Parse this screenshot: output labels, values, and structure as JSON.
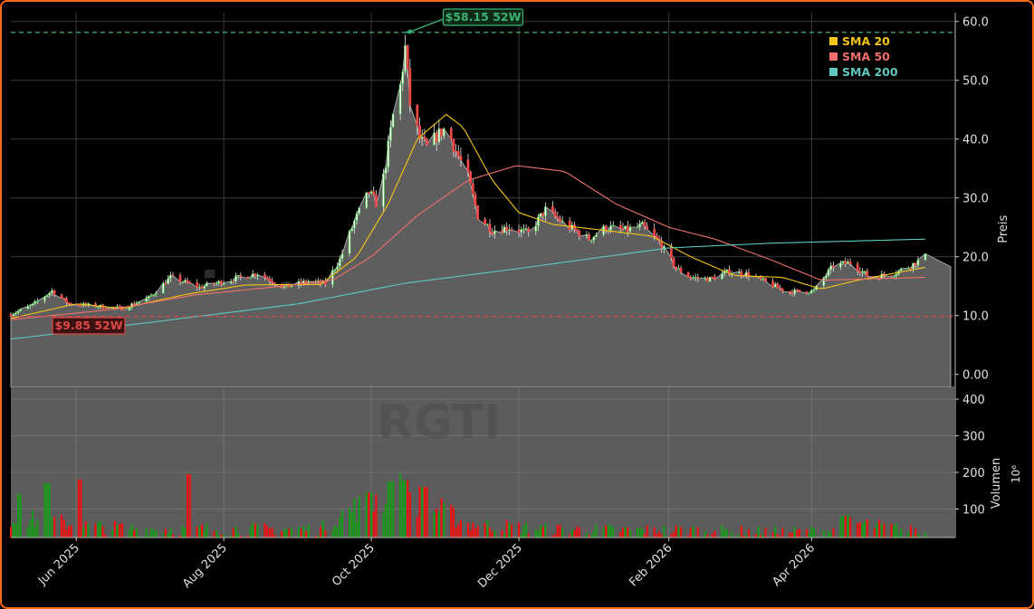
{
  "chart_data": [
    {
      "type": "candlestick",
      "ticker": "RGTI",
      "watermark": "RGTI",
      "watermark_url": "signale.trade",
      "ylabel": "Preis",
      "ylim": [
        -2.2,
        61.5
      ],
      "yticks": [
        0,
        10,
        20,
        30,
        40,
        50,
        60
      ],
      "ytick_labels": [
        "0.00",
        "10.0",
        "20.0",
        "30.0",
        "40.0",
        "50.0",
        "60.0"
      ],
      "xlim": [
        "2025-05-05",
        "2026-05-30"
      ],
      "xticks": [
        "2025-06-01",
        "2025-08-01",
        "2025-10-01",
        "2025-12-01",
        "2026-02-01",
        "2026-04-01"
      ],
      "xtick_labels": [
        "Jun 2025",
        "Aug 2025",
        "Oct 2025",
        "Dec 2025",
        "Feb 2026",
        "Apr 2026"
      ],
      "grid": true,
      "high_52w": {
        "value": 58.15,
        "label": "$58.15 52W",
        "date": "2025-10-15",
        "color": "#3cb371"
      },
      "low_52w": {
        "value": 9.85,
        "label": "$9.85 52W",
        "date": "2025-05-07",
        "color": "#e04848"
      },
      "price_anchors": [
        [
          "2025-05-05",
          10.2
        ],
        [
          "2025-05-14",
          11.8
        ],
        [
          "2025-05-22",
          14.2
        ],
        [
          "2025-05-29",
          12.0
        ],
        [
          "2025-06-10",
          11.6
        ],
        [
          "2025-06-20",
          11.2
        ],
        [
          "2025-07-01",
          13.0
        ],
        [
          "2025-07-10",
          16.5
        ],
        [
          "2025-07-22",
          14.8
        ],
        [
          "2025-08-05",
          16.2
        ],
        [
          "2025-08-15",
          17.2
        ],
        [
          "2025-08-26",
          14.8
        ],
        [
          "2025-09-05",
          15.8
        ],
        [
          "2025-09-12",
          15.4
        ],
        [
          "2025-09-18",
          19.5
        ],
        [
          "2025-09-24",
          26.0
        ],
        [
          "2025-09-30",
          31.0
        ],
        [
          "2025-10-04",
          28.5
        ],
        [
          "2025-10-07",
          36.0
        ],
        [
          "2025-10-10",
          44.0
        ],
        [
          "2025-10-13",
          49.0
        ],
        [
          "2025-10-15",
          55.5
        ],
        [
          "2025-10-17",
          46.0
        ],
        [
          "2025-10-21",
          40.0
        ],
        [
          "2025-10-24",
          38.5
        ],
        [
          "2025-10-28",
          40.5
        ],
        [
          "2025-11-01",
          42.0
        ],
        [
          "2025-11-05",
          38.0
        ],
        [
          "2025-11-10",
          33.5
        ],
        [
          "2025-11-14",
          27.0
        ],
        [
          "2025-11-20",
          24.5
        ],
        [
          "2025-11-27",
          25.0
        ],
        [
          "2025-12-05",
          24.0
        ],
        [
          "2025-12-12",
          28.0
        ],
        [
          "2025-12-20",
          25.5
        ],
        [
          "2025-12-30",
          23.0
        ],
        [
          "2026-01-06",
          25.0
        ],
        [
          "2026-01-14",
          24.5
        ],
        [
          "2026-01-21",
          25.2
        ],
        [
          "2026-01-28",
          22.5
        ],
        [
          "2026-02-04",
          18.0
        ],
        [
          "2026-02-10",
          16.5
        ],
        [
          "2026-02-18",
          16.2
        ],
        [
          "2026-02-26",
          17.5
        ],
        [
          "2026-03-06",
          17.0
        ],
        [
          "2026-03-14",
          15.5
        ],
        [
          "2026-03-22",
          14.0
        ],
        [
          "2026-04-02",
          14.2
        ],
        [
          "2026-04-10",
          18.5
        ],
        [
          "2026-04-17",
          19.0
        ],
        [
          "2026-04-25",
          16.5
        ],
        [
          "2026-05-04",
          17.0
        ],
        [
          "2026-05-12",
          18.5
        ],
        [
          "2026-05-18",
          20.0
        ]
      ],
      "area_end_value": 18.3,
      "sma": [
        {
          "name": "SMA 20",
          "color": "#f5c518",
          "points": [
            [
              "2025-05-05",
              9.5
            ],
            [
              "2025-06-01",
              12.0
            ],
            [
              "2025-06-20",
              11.2
            ],
            [
              "2025-07-15",
              13.5
            ],
            [
              "2025-08-10",
              15.2
            ],
            [
              "2025-09-10",
              15.3
            ],
            [
              "2025-09-25",
              20.0
            ],
            [
              "2025-10-08",
              29.0
            ],
            [
              "2025-10-20",
              40.0
            ],
            [
              "2025-11-01",
              44.2
            ],
            [
              "2025-11-08",
              42.0
            ],
            [
              "2025-11-20",
              33.0
            ],
            [
              "2025-12-01",
              27.5
            ],
            [
              "2025-12-15",
              25.5
            ],
            [
              "2026-01-05",
              24.5
            ],
            [
              "2026-01-25",
              23.5
            ],
            [
              "2026-02-10",
              20.0
            ],
            [
              "2026-02-28",
              16.8
            ],
            [
              "2026-03-20",
              16.5
            ],
            [
              "2026-04-05",
              14.5
            ],
            [
              "2026-04-20",
              16.0
            ],
            [
              "2026-05-18",
              18.2
            ]
          ]
        },
        {
          "name": "SMA 50",
          "color": "#ef6f6c",
          "points": [
            [
              "2025-05-05",
              9.3
            ],
            [
              "2025-06-15",
              11.0
            ],
            [
              "2025-07-20",
              13.5
            ],
            [
              "2025-08-25",
              15.0
            ],
            [
              "2025-09-15",
              16.0
            ],
            [
              "2025-10-01",
              20.0
            ],
            [
              "2025-10-20",
              27.0
            ],
            [
              "2025-11-10",
              33.0
            ],
            [
              "2025-11-30",
              35.5
            ],
            [
              "2025-12-20",
              34.5
            ],
            [
              "2026-01-10",
              29.0
            ],
            [
              "2026-02-01",
              25.0
            ],
            [
              "2026-02-20",
              23.0
            ],
            [
              "2026-03-15",
              19.5
            ],
            [
              "2026-04-05",
              16.0
            ],
            [
              "2026-05-18",
              16.5
            ]
          ]
        },
        {
          "name": "SMA 200",
          "color": "#5ec8c0",
          "points": [
            [
              "2025-05-05",
              6.0
            ],
            [
              "2025-07-01",
              8.8
            ],
            [
              "2025-09-01",
              12.0
            ],
            [
              "2025-10-15",
              15.5
            ],
            [
              "2025-12-01",
              18.0
            ],
            [
              "2026-02-01",
              21.5
            ],
            [
              "2026-03-15",
              22.3
            ],
            [
              "2026-05-18",
              23.0
            ]
          ]
        }
      ],
      "legend": {
        "placement": "top-right",
        "entries": [
          "SMA 20",
          "SMA 50",
          "SMA 200"
        ]
      }
    },
    {
      "type": "bar",
      "ylabel": "Volumen",
      "unit_label": "10⁶",
      "ylim": [
        22,
        430
      ],
      "yticks": [
        100,
        200,
        300,
        400
      ],
      "ytick_labels": [
        "100",
        "200",
        "300",
        "400"
      ],
      "xlim": [
        "2025-05-05",
        "2026-05-30"
      ],
      "colors": {
        "up": "#1a9a1a",
        "down": "#f01010"
      },
      "volume_anchors": [
        [
          "2025-05-05",
          70
        ],
        [
          "2025-05-20",
          70
        ],
        [
          "2025-06-01",
          55
        ],
        [
          "2025-07-01",
          45
        ],
        [
          "2025-08-01",
          45
        ],
        [
          "2025-09-10",
          45
        ],
        [
          "2025-09-20",
          90
        ],
        [
          "2025-10-01",
          120
        ],
        [
          "2025-10-12",
          150
        ],
        [
          "2025-10-25",
          110
        ],
        [
          "2025-11-10",
          60
        ],
        [
          "2025-12-10",
          45
        ],
        [
          "2026-01-15",
          42
        ],
        [
          "2026-02-15",
          42
        ],
        [
          "2026-03-15",
          38
        ],
        [
          "2026-04-10",
          40
        ],
        [
          "2026-04-15",
          65
        ],
        [
          "2026-05-18",
          35
        ]
      ],
      "volume_spikes": [
        [
          "2025-05-09",
          140
        ],
        [
          "2025-05-20",
          170
        ],
        [
          "2025-06-02",
          180
        ],
        [
          "2025-07-18",
          195
        ],
        [
          "2025-10-09",
          175
        ],
        [
          "2025-10-15",
          178
        ],
        [
          "2025-10-23",
          160
        ],
        [
          "2025-09-30",
          145
        ],
        [
          "2026-04-14",
          80
        ]
      ]
    }
  ]
}
